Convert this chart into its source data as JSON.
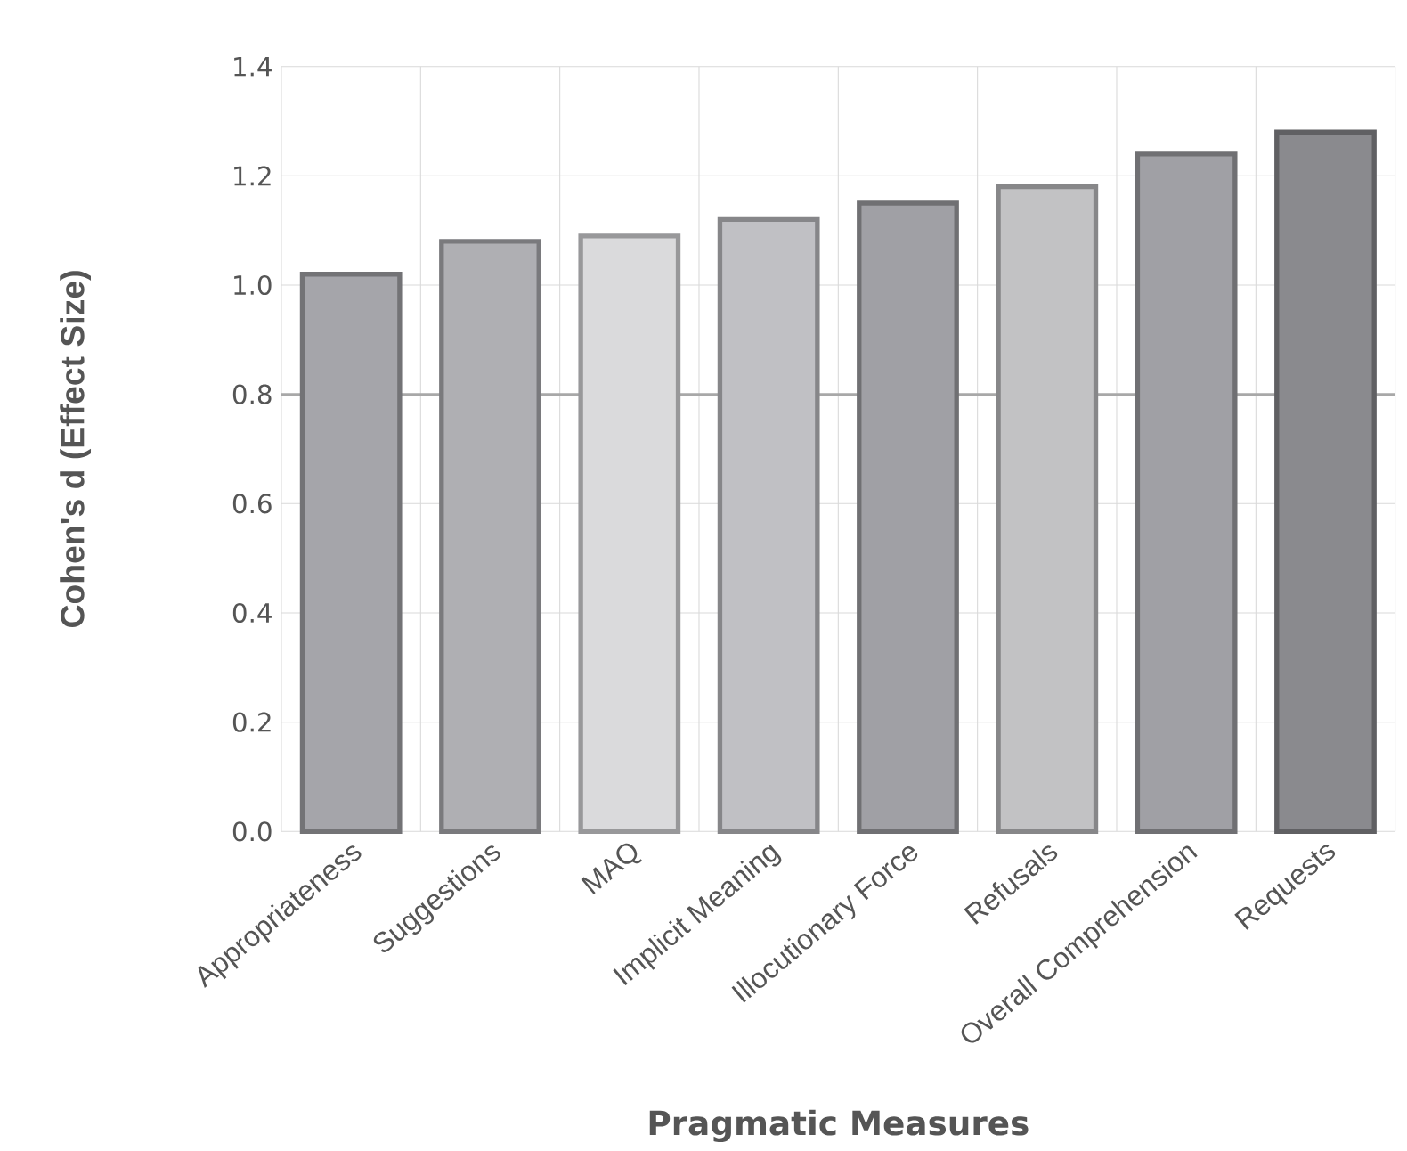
{
  "chart_data": {
    "type": "bar",
    "xlabel": "Pragmatic Measures",
    "ylabel": "Cohen's d (Effect Size)",
    "categories": [
      "Appropriateness",
      "Suggestions",
      "MAQ",
      "Implicit Meaning",
      "Illocutionary Force",
      "Refusals",
      "Overall Comprehension",
      "Requests"
    ],
    "values": [
      1.02,
      1.08,
      1.09,
      1.12,
      1.15,
      1.18,
      1.24,
      1.28
    ],
    "colors": [
      "#a5a5aa",
      "#afafb3",
      "#dadadc",
      "#c0c0c4",
      "#a0a0a5",
      "#c2c2c4",
      "#a0a0a5",
      "#8a8a8e"
    ],
    "ylim": [
      0,
      1.4
    ],
    "yticks": [
      {
        "value": 0,
        "label": "0.0"
      },
      0.2,
      0.4,
      0.6,
      0.8,
      {
        "value": 1,
        "label": "1.0"
      },
      1.2,
      1.4
    ],
    "ref_lines": [
      {
        "axis": "y",
        "value": 0.8,
        "color": "#a8a8a8"
      }
    ],
    "grid": true
  }
}
